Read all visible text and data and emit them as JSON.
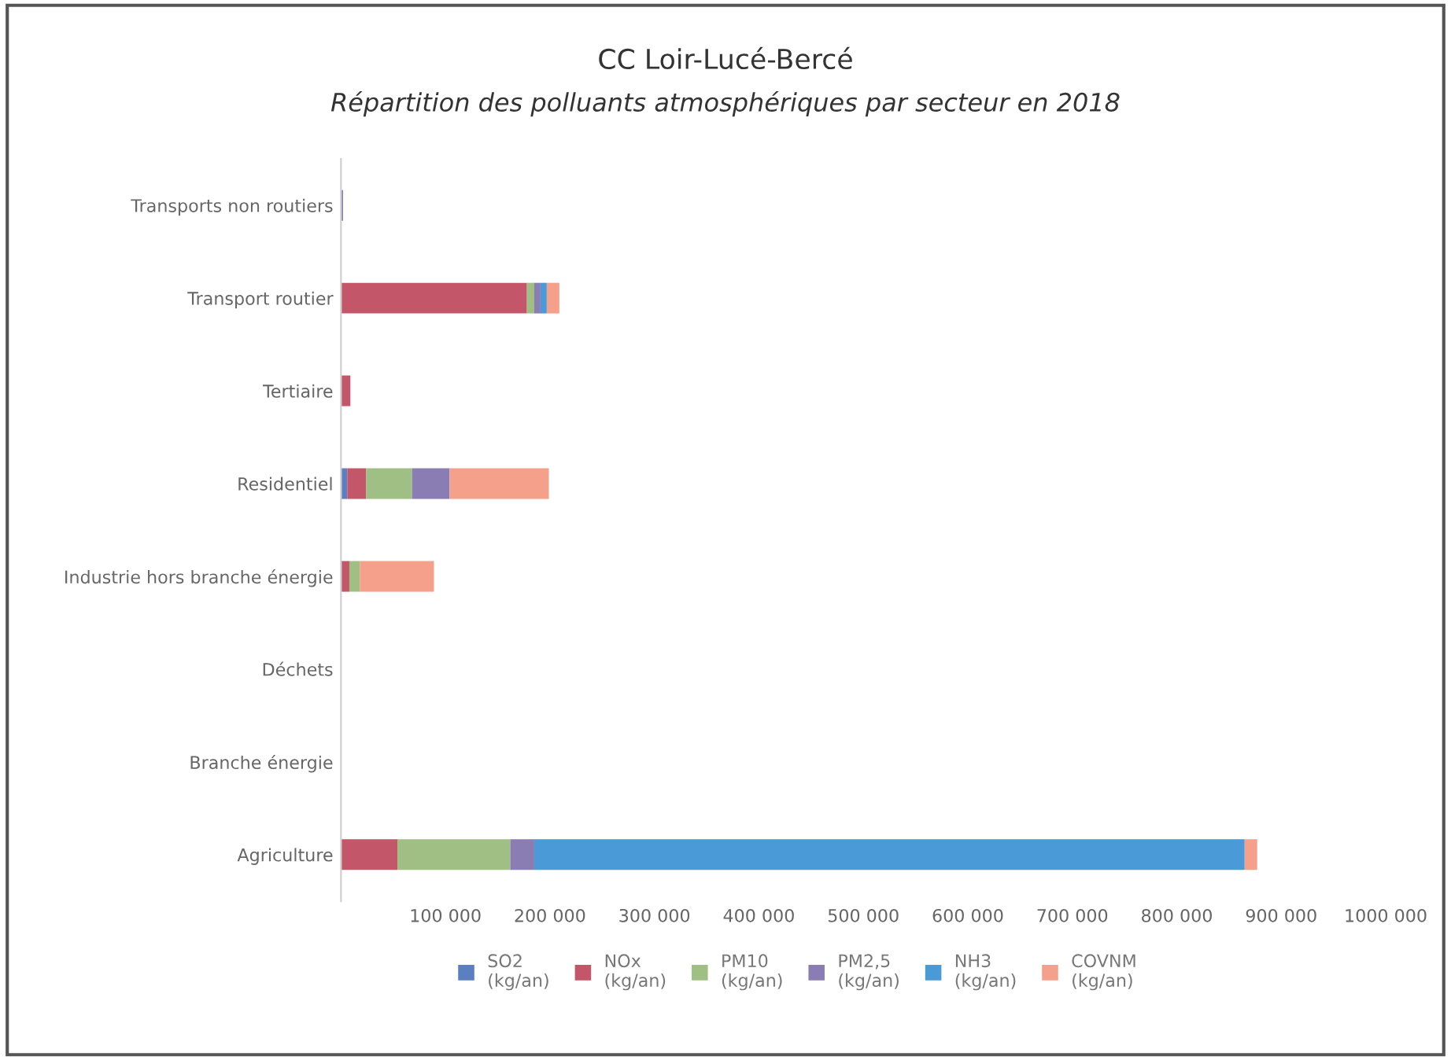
{
  "chart_data": {
    "type": "bar",
    "orientation": "horizontal",
    "stacked": true,
    "title": "CC Loir-Lucé-Bercé",
    "subtitle": "Répartition des polluants atmosphériques par secteur en 2018",
    "categories": [
      "Transports non routiers",
      "Transport routier",
      "Tertiaire",
      "Residentiel",
      "Industrie hors branche énergie",
      "Déchets",
      "Branche énergie",
      "Agriculture"
    ],
    "series": [
      {
        "name": "SO2\n(kg/an)",
        "color": "#5b7fc0",
        "values": [
          0,
          0,
          0,
          6000,
          0,
          0,
          0,
          0
        ]
      },
      {
        "name": "NOx\n(kg/an)",
        "color": "#c4566a",
        "values": [
          0,
          178000,
          9000,
          18000,
          8000,
          0,
          0,
          54000
        ]
      },
      {
        "name": "PM10\n(kg/an)",
        "color": "#9fbf84",
        "values": [
          0,
          7000,
          0,
          44000,
          10000,
          0,
          0,
          108000
        ]
      },
      {
        "name": "PM2,5\n(kg/an)",
        "color": "#8a7db3",
        "values": [
          2000,
          6000,
          0,
          36000,
          0,
          0,
          0,
          23000
        ]
      },
      {
        "name": "NH3\n(kg/an)",
        "color": "#4a9ad8",
        "values": [
          0,
          6000,
          0,
          0,
          0,
          0,
          0,
          680000
        ]
      },
      {
        "name": "COVNM\n(kg/an)",
        "color": "#f4a08a",
        "values": [
          0,
          12000,
          0,
          95000,
          71000,
          0,
          0,
          12000
        ]
      }
    ],
    "xlim": [
      0,
      1000000
    ],
    "xticks": [
      {
        "value": 100000,
        "label": "100 000"
      },
      {
        "value": 200000,
        "label": "200 000"
      },
      {
        "value": 300000,
        "label": "300 000"
      },
      {
        "value": 400000,
        "label": "400 000"
      },
      {
        "value": 500000,
        "label": "500 000"
      },
      {
        "value": 600000,
        "label": "600 000"
      },
      {
        "value": 700000,
        "label": "700 000"
      },
      {
        "value": 800000,
        "label": "800 000"
      },
      {
        "value": 900000,
        "label": "900 000"
      },
      {
        "value": 1000000,
        "label": "1000 000"
      }
    ],
    "grid": false,
    "legend": "bottom"
  }
}
